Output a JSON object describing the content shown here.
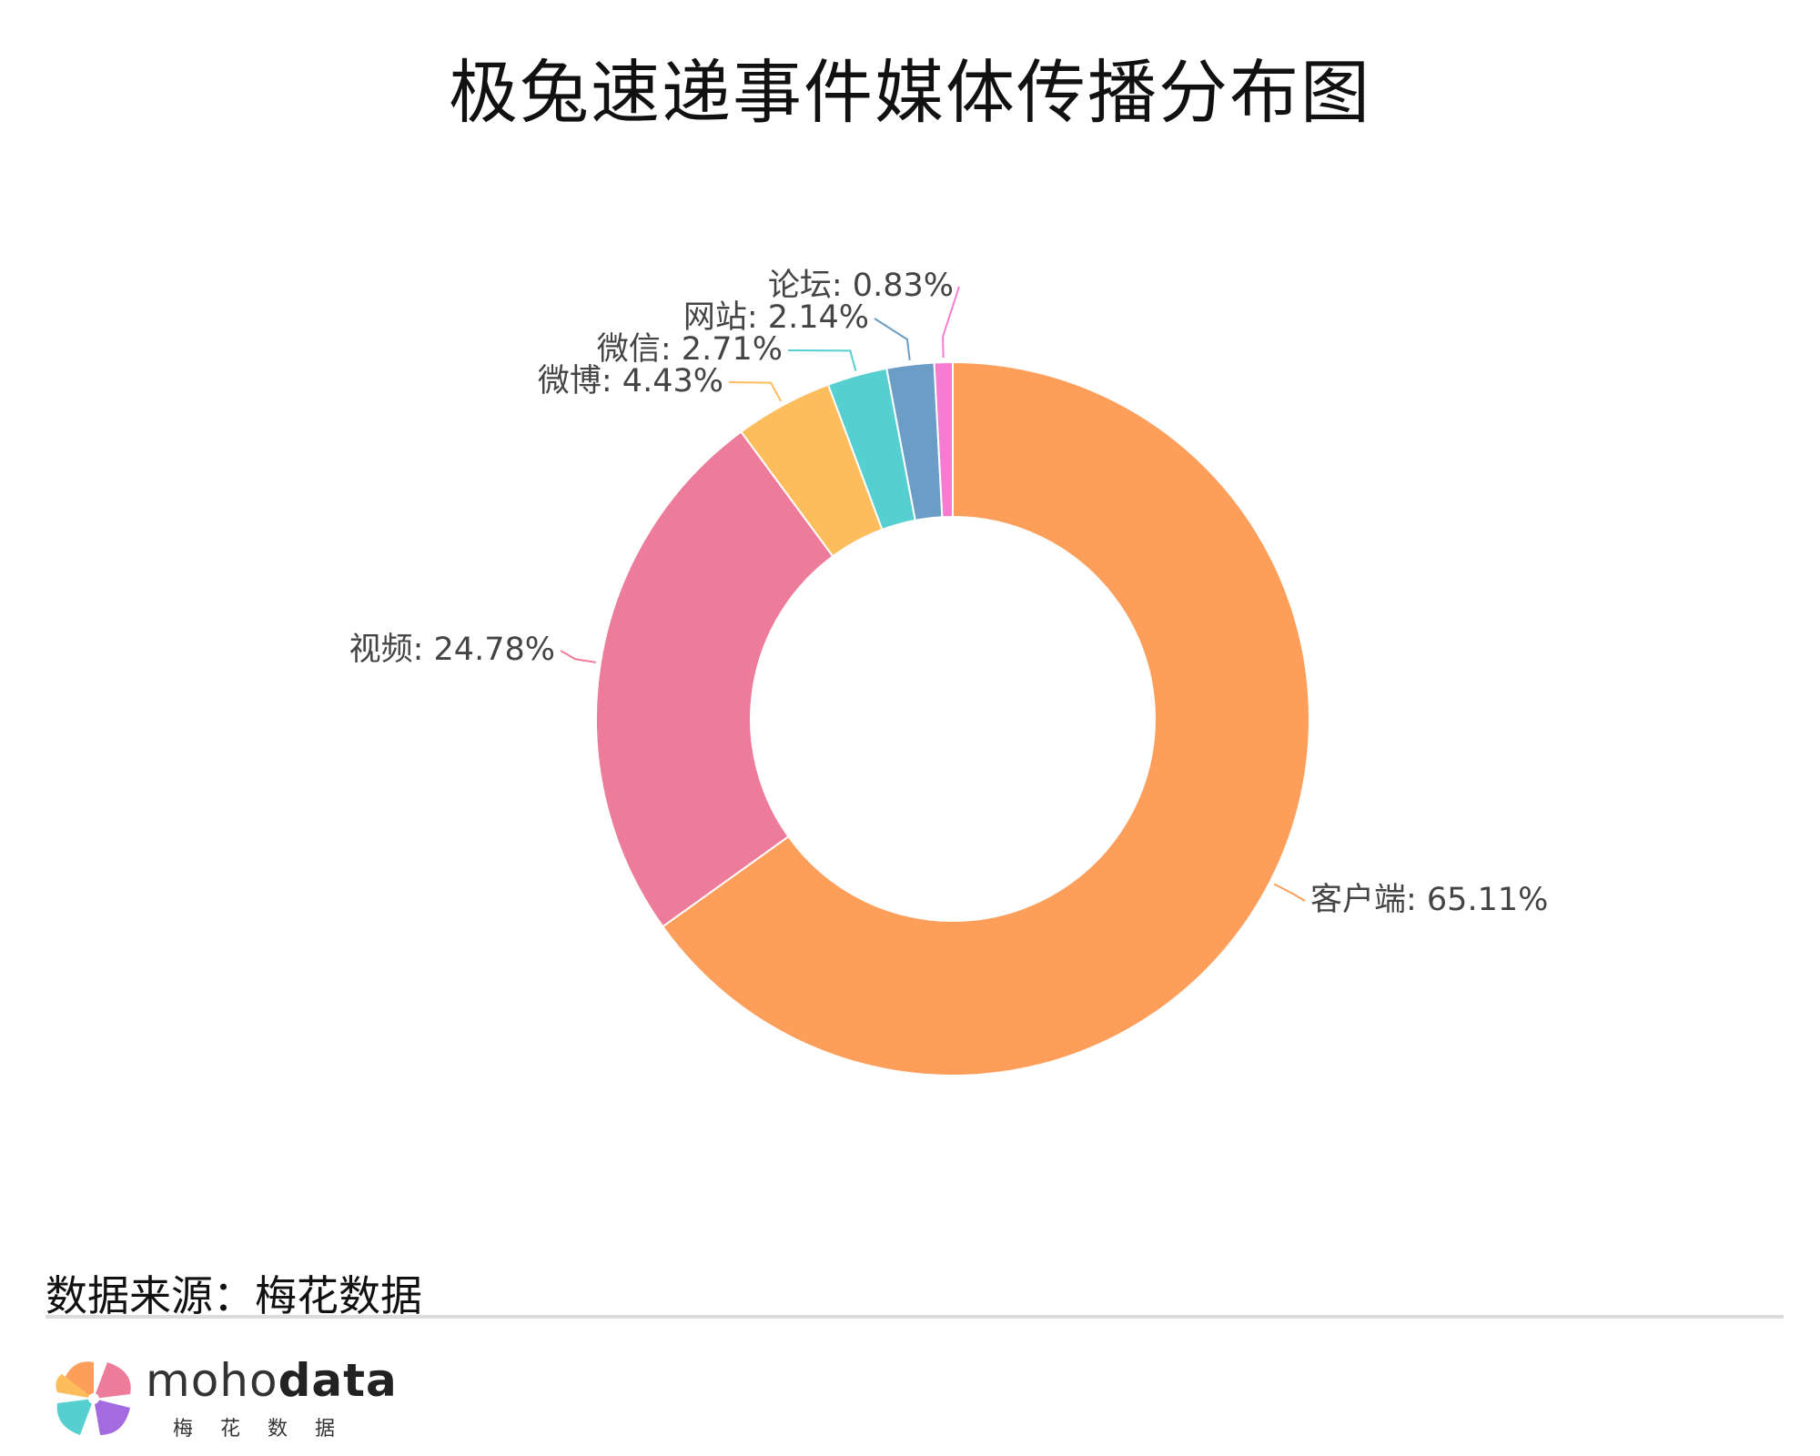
{
  "chart_data": {
    "type": "pie",
    "donut": true,
    "title": "极兔速递事件媒体传播分布图",
    "slices": [
      {
        "label": "客户端",
        "value": 65.11,
        "display": "客户端: 65.11%",
        "color": "#fd9e5b"
      },
      {
        "label": "视频",
        "value": 24.78,
        "display": "视频: 24.78%",
        "color": "#ec7c9a"
      },
      {
        "label": "微博",
        "value": 4.43,
        "display": "微博: 4.43%",
        "color": "#fdbd5c"
      },
      {
        "label": "微信",
        "value": 2.71,
        "display": "微信: 2.71%",
        "color": "#56cfd1"
      },
      {
        "label": "网站",
        "value": 2.14,
        "display": "网站: 2.14%",
        "color": "#6b9dc6"
      },
      {
        "label": "论坛",
        "value": 0.83,
        "display": "论坛: 0.83%",
        "color": "#f77bd0"
      }
    ]
  },
  "footer": {
    "source": "数据来源：梅花数据",
    "brand_light": "moho",
    "brand_bold": "data",
    "brand_sub": "梅花数据"
  }
}
